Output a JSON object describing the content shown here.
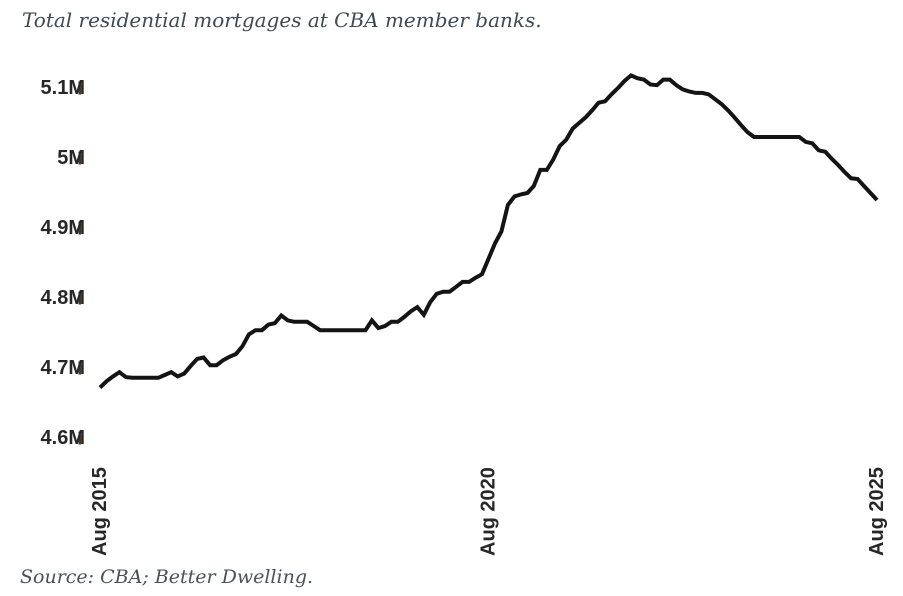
{
  "title": "Total residential mortgages at CBA member banks.",
  "source": "Source: CBA; Better Dwelling.",
  "colors": {
    "background": "#ffffff",
    "line": "#141414",
    "title_text": "#3f4a53",
    "source_text": "#47525b",
    "axis_text": "#272727",
    "tick": "#43362a"
  },
  "chart_data": {
    "type": "line",
    "title": "Total residential mortgages at CBA member banks.",
    "xlabel": "",
    "ylabel": "",
    "unit": "millions of residential mortgages",
    "frequency": "monthly",
    "x_range": [
      "Aug 2015",
      "Aug 2025"
    ],
    "ylim": [
      4.55,
      5.15
    ],
    "grid": false,
    "legend": false,
    "y_ticks": [
      {
        "label": "5.1M",
        "value": 5.1
      },
      {
        "label": "5M",
        "value": 5.0
      },
      {
        "label": "4.9M",
        "value": 4.9
      },
      {
        "label": "4.8M",
        "value": 4.8
      },
      {
        "label": "4.7M",
        "value": 4.7
      },
      {
        "label": "4.6M",
        "value": 4.6
      }
    ],
    "x_ticks": [
      {
        "label": "Aug 2015",
        "month": 0
      },
      {
        "label": "Aug 2020",
        "month": 60
      },
      {
        "label": "Aug 2025",
        "month": 120
      }
    ],
    "values": [
      4.672,
      4.681,
      4.688,
      4.694,
      4.687,
      4.686,
      4.686,
      4.686,
      4.686,
      4.686,
      4.69,
      4.694,
      4.688,
      4.692,
      4.703,
      4.713,
      4.715,
      4.704,
      4.704,
      4.711,
      4.716,
      4.72,
      4.731,
      4.748,
      4.754,
      4.754,
      4.762,
      4.764,
      4.775,
      4.768,
      4.766,
      4.766,
      4.766,
      4.76,
      4.754,
      4.754,
      4.754,
      4.754,
      4.754,
      4.754,
      4.754,
      4.754,
      4.768,
      4.757,
      4.76,
      4.766,
      4.766,
      4.773,
      4.781,
      4.787,
      4.776,
      4.794,
      4.806,
      4.809,
      4.809,
      4.816,
      4.823,
      4.823,
      4.829,
      4.834,
      4.856,
      4.878,
      4.895,
      4.933,
      4.945,
      4.948,
      4.95,
      4.96,
      4.983,
      4.983,
      4.998,
      5.017,
      5.026,
      5.042,
      5.05,
      5.058,
      5.068,
      5.079,
      5.081,
      5.091,
      5.1,
      5.11,
      5.118,
      5.114,
      5.112,
      5.105,
      5.104,
      5.112,
      5.112,
      5.104,
      5.098,
      5.095,
      5.093,
      5.093,
      5.091,
      5.084,
      5.077,
      5.068,
      5.058,
      5.047,
      5.037,
      5.03,
      5.03,
      5.03,
      5.03,
      5.03,
      5.03,
      5.03,
      5.03,
      5.023,
      5.021,
      5.011,
      5.009,
      4.999,
      4.99,
      4.98,
      4.971,
      4.97,
      4.96,
      4.95,
      4.94
    ]
  }
}
